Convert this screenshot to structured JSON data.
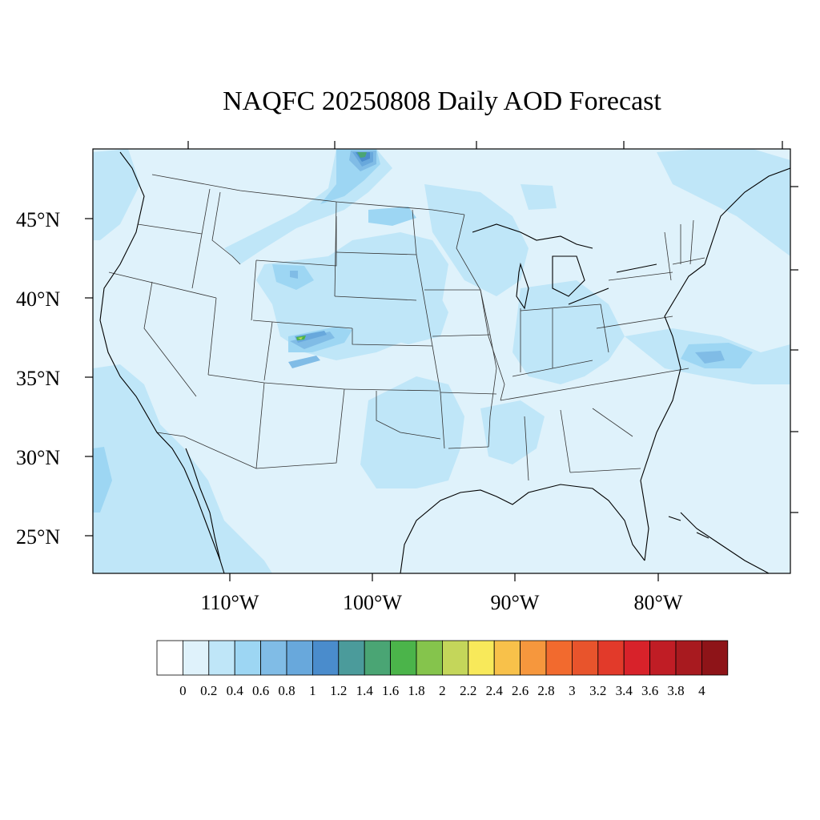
{
  "title": "NAQFC 20250808 Daily AOD Forecast",
  "colors": {
    "frame": "#000000",
    "background": "#ffffff",
    "state_lines": "#333333",
    "coast": "#000000"
  },
  "map": {
    "projection": "lambert-conformal-conus",
    "lat_labels": [
      "45°N",
      "40°N",
      "35°N",
      "30°N",
      "25°N"
    ],
    "lon_labels": [
      "110°W",
      "100°W",
      "90°W",
      "80°W"
    ]
  },
  "colorbar": {
    "labels": [
      "0",
      "0.2",
      "0.4",
      "0.6",
      "0.8",
      "1",
      "1.2",
      "1.4",
      "1.6",
      "1.8",
      "2",
      "2.2",
      "2.4",
      "2.6",
      "2.8",
      "3",
      "3.2",
      "3.4",
      "3.6",
      "3.8",
      "4"
    ],
    "colors": [
      "#ffffff",
      "#dff2fb",
      "#bfe6f8",
      "#9dd6f3",
      "#80bce6",
      "#68a8dc",
      "#4a8ccc",
      "#4b9b9b",
      "#4aa574",
      "#4bb44a",
      "#85c44c",
      "#c4d65a",
      "#f8e95a",
      "#f8c14a",
      "#f6973d",
      "#f26a2e",
      "#e8542c",
      "#e23a2a",
      "#d8222a",
      "#c01d25",
      "#a81a1f",
      "#8e1418"
    ]
  }
}
